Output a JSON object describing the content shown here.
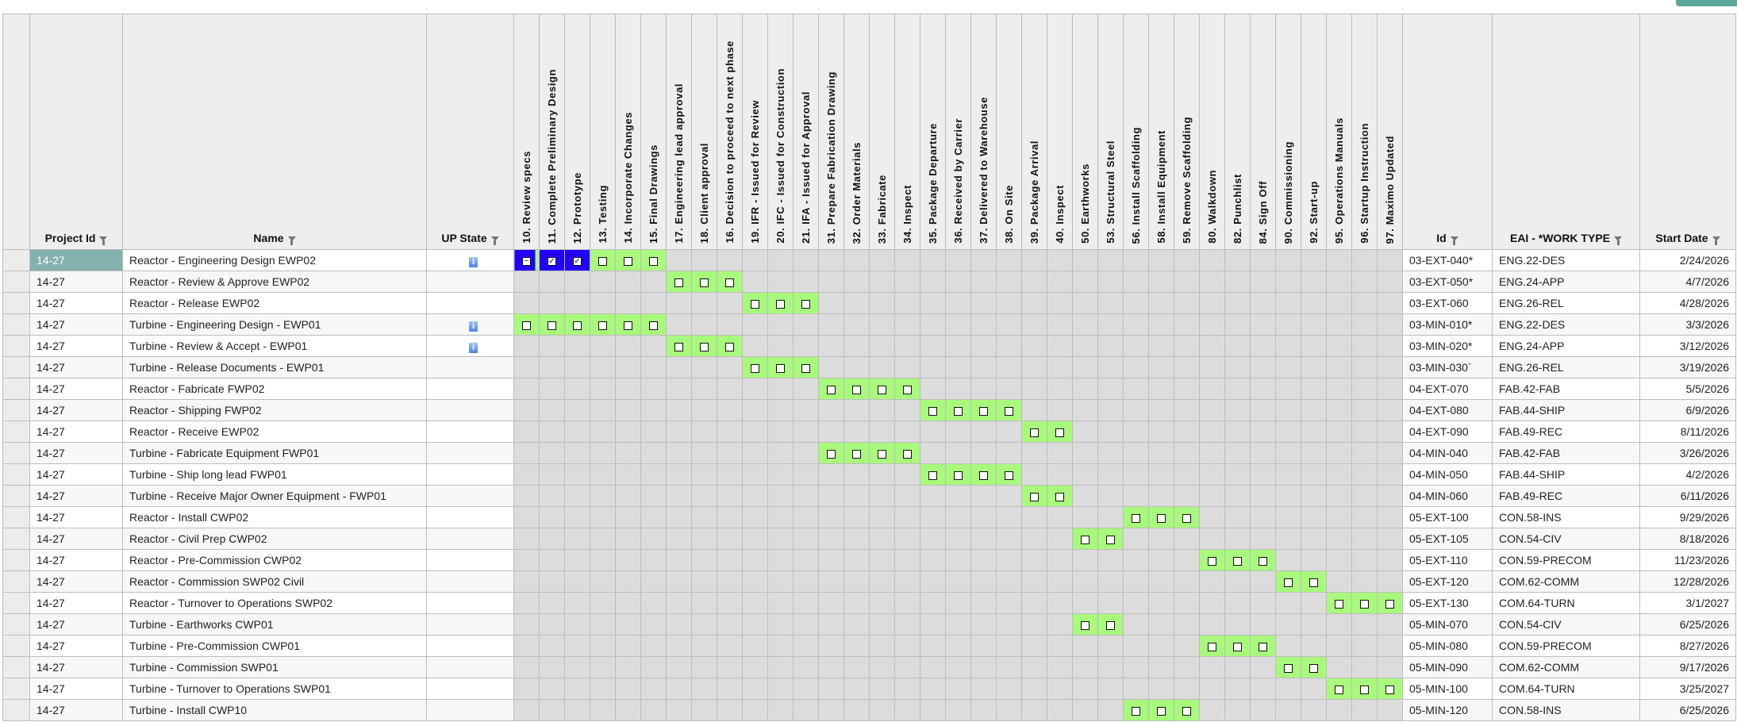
{
  "colors": {
    "accent": "#5aa897",
    "selected_cell": "#84b1ad",
    "active_task": "#a8f97c",
    "inactive_task": "#dcdcdc",
    "selected_task": "#2200ff"
  },
  "columns": {
    "project_id": "Project Id",
    "name": "Name",
    "up_state": "UP State",
    "id": "Id",
    "work_type": "EAI - *WORK TYPE",
    "start_date": "Start Date"
  },
  "tasks": [
    {
      "code": "10",
      "label": "10. Review specs"
    },
    {
      "code": "11",
      "label": "11. Complete Preliminary Design"
    },
    {
      "code": "12",
      "label": "12. Prototype"
    },
    {
      "code": "13",
      "label": "13. Testing"
    },
    {
      "code": "14",
      "label": "14. Incorporate Changes"
    },
    {
      "code": "15",
      "label": "15. Final Drawings"
    },
    {
      "code": "17",
      "label": "17. Engineering lead approval"
    },
    {
      "code": "18",
      "label": "18. Client approval"
    },
    {
      "code": "16",
      "label": "16. Decision to proceed to next phase"
    },
    {
      "code": "19",
      "label": "19. IFR - Issued for Review"
    },
    {
      "code": "20",
      "label": "20. IFC - Issued for Construction"
    },
    {
      "code": "21",
      "label": "21. IFA - Issued for Approval"
    },
    {
      "code": "31",
      "label": "31. Prepare Fabrication Drawing"
    },
    {
      "code": "32",
      "label": "32. Order Materials"
    },
    {
      "code": "33",
      "label": "33. Fabricate"
    },
    {
      "code": "34",
      "label": "34. Inspect"
    },
    {
      "code": "35",
      "label": "35. Package Departure"
    },
    {
      "code": "36",
      "label": "36. Received by Carrier"
    },
    {
      "code": "37",
      "label": "37. Delivered to Warehouse"
    },
    {
      "code": "38",
      "label": "38. On Site"
    },
    {
      "code": "39",
      "label": "39. Package Arrival"
    },
    {
      "code": "40",
      "label": "40. Inspect"
    },
    {
      "code": "50",
      "label": "50. Earthworks"
    },
    {
      "code": "53",
      "label": "53. Structural Steel"
    },
    {
      "code": "56",
      "label": "56. Install Scaffolding"
    },
    {
      "code": "58",
      "label": "58. Install Equipment"
    },
    {
      "code": "59",
      "label": "59. Remove Scaffolding"
    },
    {
      "code": "80",
      "label": "80. Walkdown"
    },
    {
      "code": "82",
      "label": "82. Punchlist"
    },
    {
      "code": "84",
      "label": "84. Sign Off"
    },
    {
      "code": "90",
      "label": "90. Commissioning"
    },
    {
      "code": "92",
      "label": "92. Start-up"
    },
    {
      "code": "95",
      "label": "95. Operations Manuals"
    },
    {
      "code": "96",
      "label": "96. Startup Instruction"
    },
    {
      "code": "97",
      "label": "97. Maximo Updated"
    }
  ],
  "rows": [
    {
      "project_id": "14-27",
      "name": "Reactor - Engineering Design EWP02",
      "up_state_info": true,
      "id": "03-EXT-040*",
      "work_type": "ENG.22-DES",
      "start_date": "2/24/2026",
      "selected": true,
      "checks": {
        "10": "partial",
        "11": "checked",
        "12": "checked",
        "13": "unchecked",
        "14": "unchecked",
        "15": "unchecked"
      },
      "selected_tasks": [
        "10",
        "11",
        "12"
      ]
    },
    {
      "project_id": "14-27",
      "name": "Reactor - Review & Approve EWP02",
      "up_state_info": false,
      "id": "03-EXT-050*",
      "work_type": "ENG.24-APP",
      "start_date": "4/7/2026",
      "checks": {
        "17": "unchecked",
        "18": "unchecked",
        "16": "unchecked"
      }
    },
    {
      "project_id": "14-27",
      "name": "Reactor - Release EWP02",
      "up_state_info": false,
      "id": "03-EXT-060",
      "work_type": "ENG.26-REL",
      "start_date": "4/28/2026",
      "checks": {
        "19": "unchecked",
        "20": "unchecked",
        "21": "unchecked"
      }
    },
    {
      "project_id": "14-27",
      "name": "Turbine - Engineering Design - EWP01",
      "up_state_info": true,
      "id": "03-MIN-010*",
      "work_type": "ENG.22-DES",
      "start_date": "3/3/2026",
      "checks": {
        "10": "unchecked",
        "11": "unchecked",
        "12": "unchecked",
        "13": "unchecked",
        "14": "unchecked",
        "15": "unchecked"
      }
    },
    {
      "project_id": "14-27",
      "name": "Turbine - Review & Accept - EWP01",
      "up_state_info": true,
      "id": "03-MIN-020*",
      "work_type": "ENG.24-APP",
      "start_date": "3/12/2026",
      "checks": {
        "17": "unchecked",
        "18": "unchecked",
        "16": "unchecked"
      }
    },
    {
      "project_id": "14-27",
      "name": "Turbine - Release Documents - EWP01",
      "up_state_info": false,
      "id": "03-MIN-030`",
      "work_type": "ENG.26-REL",
      "start_date": "3/19/2026",
      "checks": {
        "19": "unchecked",
        "20": "unchecked",
        "21": "unchecked"
      }
    },
    {
      "project_id": "14-27",
      "name": "Reactor - Fabricate FWP02",
      "up_state_info": false,
      "id": "04-EXT-070",
      "work_type": "FAB.42-FAB",
      "start_date": "5/5/2026",
      "checks": {
        "31": "unchecked",
        "32": "unchecked",
        "33": "unchecked",
        "34": "unchecked"
      }
    },
    {
      "project_id": "14-27",
      "name": "Reactor - Shipping FWP02",
      "up_state_info": false,
      "id": "04-EXT-080",
      "work_type": "FAB.44-SHIP",
      "start_date": "6/9/2026",
      "checks": {
        "35": "unchecked",
        "36": "unchecked",
        "37": "unchecked",
        "38": "unchecked"
      }
    },
    {
      "project_id": "14-27",
      "name": "Reactor - Receive EWP02",
      "up_state_info": false,
      "id": "04-EXT-090",
      "work_type": "FAB.49-REC",
      "start_date": "8/11/2026",
      "checks": {
        "39": "unchecked",
        "40": "unchecked"
      }
    },
    {
      "project_id": "14-27",
      "name": "Turbine - Fabricate Equipment FWP01",
      "up_state_info": false,
      "id": "04-MIN-040",
      "work_type": "FAB.42-FAB",
      "start_date": "3/26/2026",
      "checks": {
        "31": "unchecked",
        "32": "unchecked",
        "33": "unchecked",
        "34": "unchecked"
      }
    },
    {
      "project_id": "14-27",
      "name": "Turbine - Ship long lead FWP01",
      "up_state_info": false,
      "id": "04-MIN-050",
      "work_type": "FAB.44-SHIP",
      "start_date": "4/2/2026",
      "checks": {
        "35": "unchecked",
        "36": "unchecked",
        "37": "unchecked",
        "38": "unchecked"
      }
    },
    {
      "project_id": "14-27",
      "name": "Turbine - Receive Major Owner Equipment - FWP01",
      "up_state_info": false,
      "id": "04-MIN-060",
      "work_type": "FAB.49-REC",
      "start_date": "6/11/2026",
      "checks": {
        "39": "unchecked",
        "40": "unchecked"
      }
    },
    {
      "project_id": "14-27",
      "name": "Reactor - Install CWP02",
      "up_state_info": false,
      "id": "05-EXT-100",
      "work_type": "CON.58-INS",
      "start_date": "9/29/2026",
      "checks": {
        "56": "unchecked",
        "58": "unchecked",
        "59": "unchecked"
      }
    },
    {
      "project_id": "14-27",
      "name": "Reactor - Civil Prep CWP02",
      "up_state_info": false,
      "id": "05-EXT-105",
      "work_type": "CON.54-CIV",
      "start_date": "8/18/2026",
      "checks": {
        "50": "unchecked",
        "53": "unchecked"
      }
    },
    {
      "project_id": "14-27",
      "name": "Reactor - Pre-Commission CWP02",
      "up_state_info": false,
      "id": "05-EXT-110",
      "work_type": "CON.59-PRECOM",
      "start_date": "11/23/2026",
      "checks": {
        "80": "unchecked",
        "82": "unchecked",
        "84": "unchecked"
      }
    },
    {
      "project_id": "14-27",
      "name": "Reactor - Commission SWP02 Civil",
      "up_state_info": false,
      "id": "05-EXT-120",
      "work_type": "COM.62-COMM",
      "start_date": "12/28/2026",
      "checks": {
        "90": "unchecked",
        "92": "unchecked"
      }
    },
    {
      "project_id": "14-27",
      "name": "Reactor - Turnover to Operations SWP02",
      "up_state_info": false,
      "id": "05-EXT-130",
      "work_type": "COM.64-TURN",
      "start_date": "3/1/2027",
      "checks": {
        "95": "unchecked",
        "96": "unchecked",
        "97": "unchecked"
      }
    },
    {
      "project_id": "14-27",
      "name": "Turbine - Earthworks CWP01",
      "up_state_info": false,
      "id": "05-MIN-070",
      "work_type": "CON.54-CIV",
      "start_date": "6/25/2026",
      "checks": {
        "50": "unchecked",
        "53": "unchecked"
      }
    },
    {
      "project_id": "14-27",
      "name": "Turbine - Pre-Commission CWP01",
      "up_state_info": false,
      "id": "05-MIN-080",
      "work_type": "CON.59-PRECOM",
      "start_date": "8/27/2026",
      "checks": {
        "80": "unchecked",
        "82": "unchecked",
        "84": "unchecked"
      }
    },
    {
      "project_id": "14-27",
      "name": "Turbine - Commission SWP01",
      "up_state_info": false,
      "id": "05-MIN-090",
      "work_type": "COM.62-COMM",
      "start_date": "9/17/2026",
      "checks": {
        "90": "unchecked",
        "92": "unchecked"
      }
    },
    {
      "project_id": "14-27",
      "name": "Turbine - Turnover to Operations SWP01",
      "up_state_info": false,
      "id": "05-MIN-100",
      "work_type": "COM.64-TURN",
      "start_date": "3/25/2027",
      "checks": {
        "95": "unchecked",
        "96": "unchecked",
        "97": "unchecked"
      }
    },
    {
      "project_id": "14-27",
      "name": "Turbine - Install CWP10",
      "up_state_info": false,
      "id": "05-MIN-120",
      "work_type": "CON.58-INS",
      "start_date": "6/25/2026",
      "checks": {
        "56": "unchecked",
        "58": "unchecked",
        "59": "unchecked"
      }
    }
  ]
}
